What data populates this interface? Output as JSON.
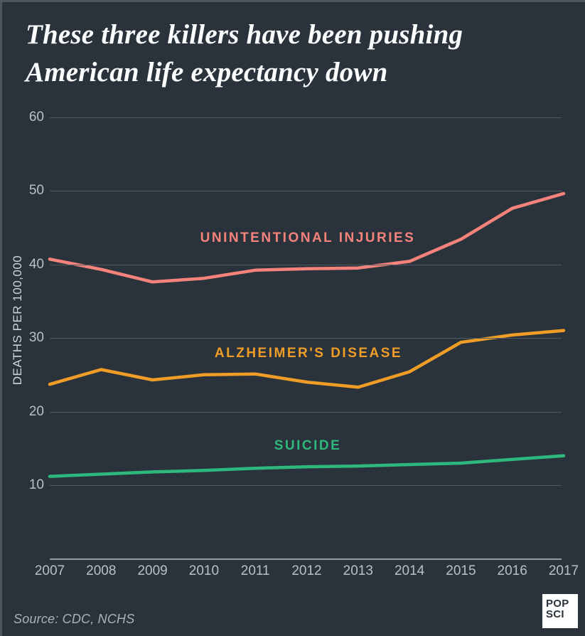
{
  "header": {
    "title_line1": "These three killers have been pushing",
    "title_line2": "American life expectancy down"
  },
  "footer": {
    "source": "Source: CDC, NCHS",
    "logo_line1": "POP",
    "logo_line2": "SCI"
  },
  "theme": {
    "background": "#2a333b",
    "title_text": "#fbfcfd",
    "tick_text": "#b9c0c5",
    "axis_label_text": "#ced3d6",
    "gridline": "#505a61",
    "axis_line": "#939ba1",
    "logo_background": "#ffffff",
    "logo_text": "#2a333b"
  },
  "chart_data": {
    "type": "line",
    "title": "These three killers have been pushing American life expectancy down",
    "xlabel": "",
    "ylabel": "DEATHS PER 100,000",
    "categories": [
      "2007",
      "2008",
      "2009",
      "2010",
      "2011",
      "2012",
      "2013",
      "2014",
      "2015",
      "2016",
      "2017"
    ],
    "yticks": [
      10,
      20,
      30,
      40,
      50,
      60
    ],
    "ylim": [
      0,
      62
    ],
    "grid": "horizontal",
    "legend_position": "inline-labels-on-chart",
    "series": [
      {
        "name": "UNINTENTIONAL INJURIES",
        "color": "#f5837c",
        "values": [
          40.7,
          39.3,
          37.6,
          38.1,
          39.2,
          39.4,
          39.5,
          40.4,
          43.4,
          47.6,
          49.6
        ]
      },
      {
        "name": "ALZHEIMER'S DISEASE",
        "color": "#f09d27",
        "values": [
          23.7,
          25.7,
          24.3,
          25.0,
          25.1,
          24.0,
          23.3,
          25.4,
          29.4,
          30.4,
          31.0
        ]
      },
      {
        "name": "SUICIDE",
        "color": "#2eb87d",
        "values": [
          11.2,
          11.5,
          11.8,
          12.0,
          12.3,
          12.5,
          12.6,
          12.8,
          13.0,
          13.5,
          14.0
        ]
      }
    ]
  }
}
